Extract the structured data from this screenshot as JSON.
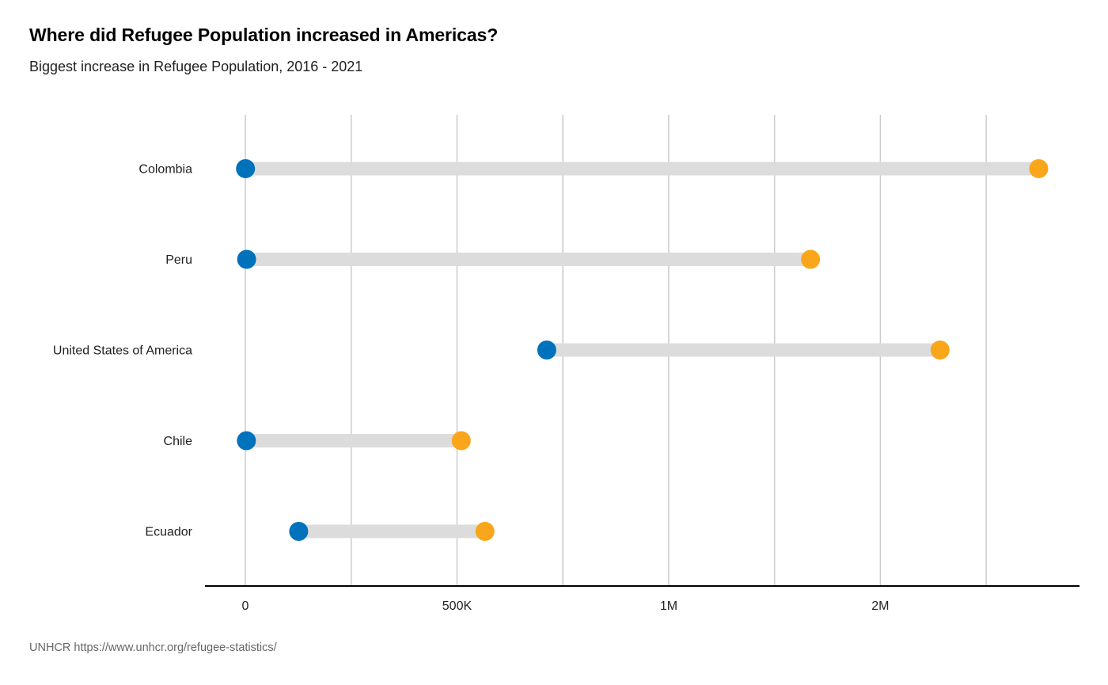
{
  "title": "Where did Refugee Population increased in Americas?",
  "subtitle": "Biggest increase in Refugee Population, 2016 - 2021",
  "source": "UNHCR https://www.unhcr.org/refugee-statistics/",
  "colors": {
    "start": "#0072BC",
    "end": "#FAA61A",
    "bar": "#DCDCDC",
    "grid": "#CCCCCC",
    "axis": "#000000"
  },
  "chart_data": {
    "type": "dumbbell",
    "title": "Where did Refugee Population increased in Americas?",
    "subtitle": "Biggest increase in Refugee Population, 2016 - 2021",
    "categories": [
      "Colombia",
      "Peru",
      "United States of America",
      "Chile",
      "Ecuador"
    ],
    "series": [
      {
        "values": [
          400,
          3000,
          712000,
          2500,
          126000
        ]
      },
      {
        "values": [
          1874000,
          1335000,
          1641000,
          510000,
          566000
        ]
      }
    ],
    "xlim": [
      0,
      1875000
    ],
    "x_gridlines": [
      0,
      250000,
      500000,
      750000,
      1000000,
      1250000,
      1500000,
      1750000
    ],
    "x_ticks": [
      {
        "value": 0,
        "label": "0"
      },
      {
        "value": 500000,
        "label": "500K"
      },
      {
        "value": 1000000,
        "label": "1M"
      },
      {
        "value": 1500000,
        "label": "2M"
      }
    ],
    "xlabel": "",
    "ylabel": "",
    "grid": "vertical",
    "legend": "none"
  }
}
